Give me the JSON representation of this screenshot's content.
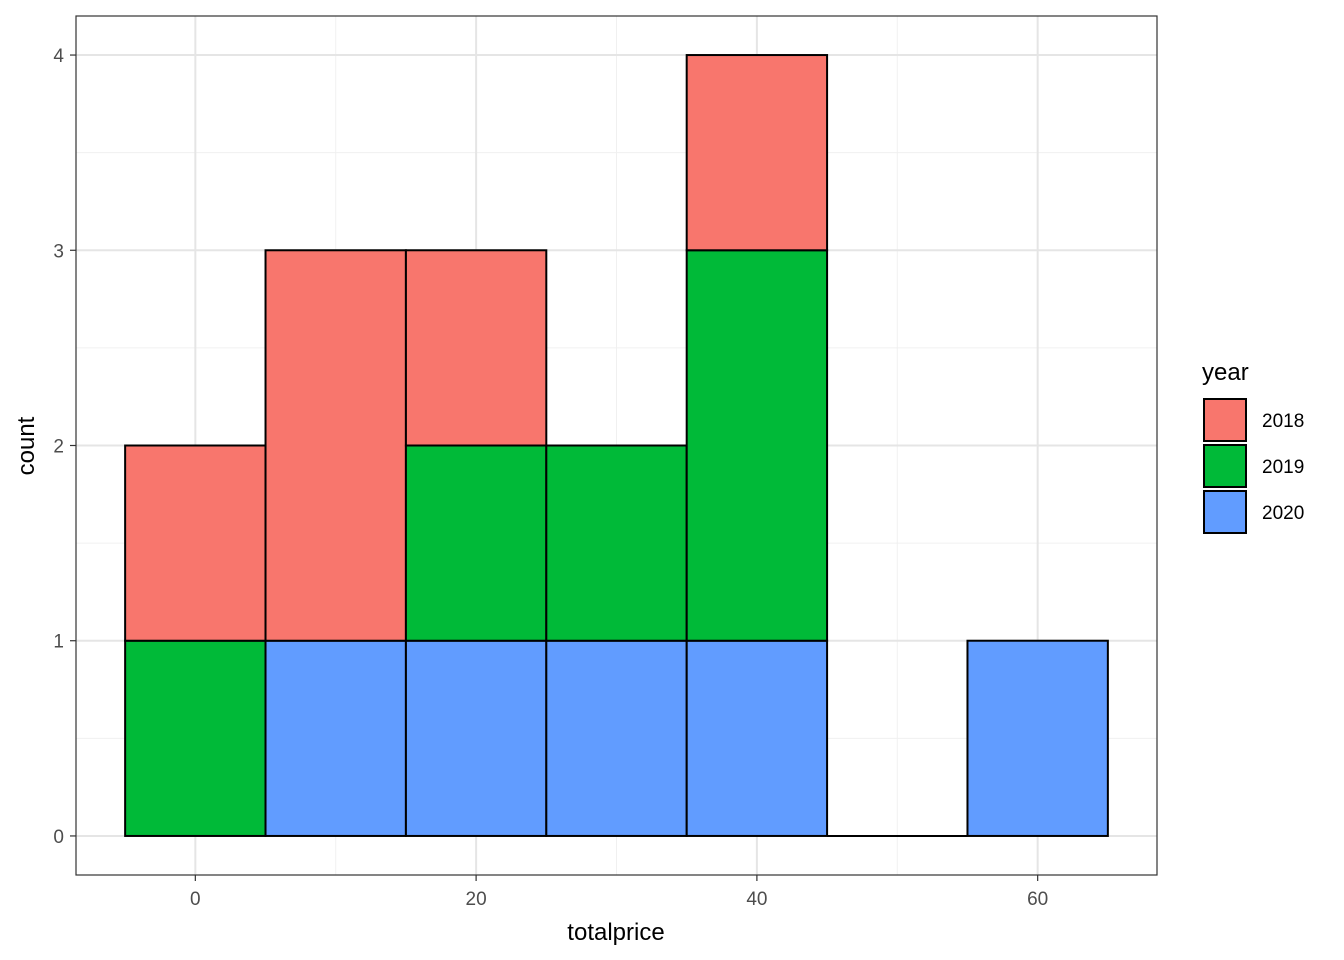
{
  "chart_data": {
    "type": "bar",
    "subtype": "stacked-histogram",
    "xlabel": "totalprice",
    "ylabel": "count",
    "xlim": [
      -8.5,
      68.5
    ],
    "ylim": [
      -0.2,
      4.2
    ],
    "x_ticks": [
      0,
      20,
      40,
      60
    ],
    "x_tick_labels": [
      "0",
      "20",
      "40",
      "60"
    ],
    "y_ticks": [
      0,
      1,
      2,
      3,
      4
    ],
    "y_tick_labels": [
      "0",
      "1",
      "2",
      "3",
      "4"
    ],
    "bin_width": 10,
    "bins": [
      {
        "x0": -5,
        "x1": 5
      },
      {
        "x0": 5,
        "x1": 15
      },
      {
        "x0": 15,
        "x1": 25
      },
      {
        "x0": 25,
        "x1": 35
      },
      {
        "x0": 35,
        "x1": 45
      },
      {
        "x0": 45,
        "x1": 55
      },
      {
        "x0": 55,
        "x1": 65
      }
    ],
    "series": [
      {
        "name": "2018",
        "color": "#F8766D",
        "values": [
          1,
          2,
          1,
          0,
          1,
          0,
          0
        ]
      },
      {
        "name": "2019",
        "color": "#00BA38",
        "values": [
          1,
          0,
          1,
          1,
          2,
          0,
          0
        ]
      },
      {
        "name": "2020",
        "color": "#619CFF",
        "values": [
          0,
          1,
          1,
          1,
          1,
          0,
          1
        ]
      }
    ],
    "stack_order_bottom_to_top": [
      "2020",
      "2019",
      "2018"
    ],
    "legend": {
      "title": "year",
      "position": "right"
    },
    "grid": true,
    "theme": "bw"
  }
}
